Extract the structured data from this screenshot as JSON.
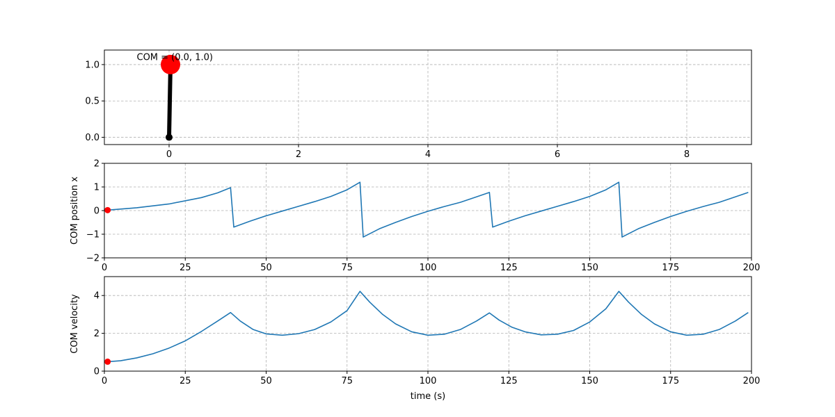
{
  "chart_data": [
    {
      "type": "line",
      "title": "",
      "xlabel": "",
      "ylabel": "",
      "xlim": [
        -1,
        9
      ],
      "ylim": [
        -0.1,
        1.2
      ],
      "xticks": [
        0,
        2,
        4,
        6,
        8
      ],
      "yticks": [
        0.0,
        0.5,
        1.0
      ],
      "xtick_labels": [
        "0",
        "2",
        "4",
        "6",
        "8"
      ],
      "ytick_labels": [
        "0.0",
        "0.5",
        "1.0"
      ],
      "grid": true,
      "pendulum": {
        "pivot": [
          0.0,
          0.0
        ],
        "com": [
          0.0,
          1.0
        ],
        "rod_color": "#000000",
        "pivot_color": "#000000",
        "com_color": "#ff0000"
      },
      "annotations": [
        {
          "text": "COM = (0.0, 1.0)",
          "x": -0.5,
          "y": 1.05
        }
      ]
    },
    {
      "type": "line",
      "title": "",
      "xlabel": "",
      "ylabel": "COM position x",
      "xlim": [
        0,
        200
      ],
      "ylim": [
        -2,
        2
      ],
      "xticks": [
        0,
        25,
        50,
        75,
        100,
        125,
        150,
        175,
        200
      ],
      "yticks": [
        -2,
        -1,
        0,
        1,
        2
      ],
      "xtick_labels": [
        "0",
        "25",
        "50",
        "75",
        "100",
        "125",
        "150",
        "175",
        "200"
      ],
      "ytick_labels": [
        "−2",
        "−1",
        "0",
        "1",
        "2"
      ],
      "grid": true,
      "line_color": "#1f77b4",
      "marker": {
        "x": 1,
        "y": 0.02,
        "color": "#ff0000"
      },
      "series": [
        {
          "x": [
            1,
            10,
            20,
            30,
            35,
            39,
            40,
            45,
            50,
            55,
            60,
            65,
            70,
            75,
            79,
            80,
            85,
            90,
            95,
            100,
            105,
            110,
            115,
            119,
            120,
            125,
            130,
            135,
            140,
            145,
            150,
            155,
            159,
            160,
            165,
            170,
            175,
            180,
            185,
            190,
            195,
            199
          ],
          "y": [
            0.02,
            0.12,
            0.28,
            0.55,
            0.75,
            0.97,
            -0.7,
            -0.45,
            -0.22,
            -0.02,
            0.18,
            0.38,
            0.6,
            0.88,
            1.2,
            -1.12,
            -0.77,
            -0.5,
            -0.25,
            -0.03,
            0.17,
            0.35,
            0.58,
            0.77,
            -0.7,
            -0.45,
            -0.22,
            -0.02,
            0.18,
            0.38,
            0.6,
            0.88,
            1.2,
            -1.12,
            -0.77,
            -0.5,
            -0.25,
            -0.03,
            0.17,
            0.35,
            0.58,
            0.77
          ]
        }
      ]
    },
    {
      "type": "line",
      "title": "",
      "xlabel": "time (s)",
      "ylabel": "COM velocity",
      "xlim": [
        0,
        200
      ],
      "ylim": [
        0,
        5
      ],
      "xticks": [
        0,
        25,
        50,
        75,
        100,
        125,
        150,
        175,
        200
      ],
      "yticks": [
        0,
        2,
        4
      ],
      "xtick_labels": [
        "0",
        "25",
        "50",
        "75",
        "100",
        "125",
        "150",
        "175",
        "200"
      ],
      "ytick_labels": [
        "0",
        "2",
        "4"
      ],
      "grid": true,
      "line_color": "#1f77b4",
      "marker": {
        "x": 1,
        "y": 0.5,
        "color": "#ff0000"
      },
      "series": [
        {
          "x": [
            1,
            5,
            10,
            15,
            20,
            25,
            30,
            35,
            39,
            42,
            46,
            50,
            55,
            60,
            65,
            70,
            75,
            79,
            82,
            86,
            90,
            95,
            100,
            105,
            110,
            115,
            119,
            122,
            126,
            130,
            135,
            140,
            145,
            150,
            155,
            159,
            162,
            166,
            170,
            175,
            180,
            185,
            190,
            195,
            199
          ],
          "y": [
            0.5,
            0.55,
            0.7,
            0.92,
            1.22,
            1.6,
            2.1,
            2.65,
            3.1,
            2.65,
            2.2,
            1.97,
            1.9,
            1.98,
            2.2,
            2.6,
            3.2,
            4.22,
            3.65,
            3.0,
            2.5,
            2.08,
            1.9,
            1.95,
            2.2,
            2.65,
            3.08,
            2.7,
            2.32,
            2.08,
            1.92,
            1.95,
            2.15,
            2.6,
            3.3,
            4.22,
            3.65,
            3.0,
            2.5,
            2.08,
            1.9,
            1.95,
            2.2,
            2.65,
            3.1
          ]
        }
      ]
    }
  ]
}
